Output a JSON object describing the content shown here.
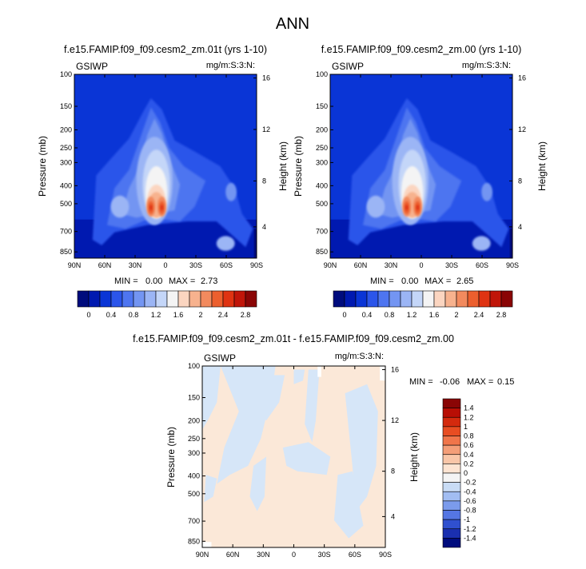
{
  "figure_title": "ANN",
  "chart_data": [
    {
      "type": "heatmap",
      "title": "f.e15.FAMIP.f09_f09.cesm2_zm.01t (yrs 1-10)",
      "variable": "GSIWP",
      "units": "mg/m:S:3:N:",
      "xlabel": "",
      "ylabel": "Pressure (mb)",
      "y2label": "Height (km)",
      "x_ticks": [
        "90N",
        "60N",
        "30N",
        "0",
        "30S",
        "60S",
        "90S"
      ],
      "y_ticks": [
        "100",
        "150",
        "200",
        "250",
        "300",
        "400",
        "500",
        "700",
        "850"
      ],
      "y2_ticks": [
        "16",
        "12",
        "8",
        "4"
      ],
      "min_label": "MIN =",
      "min_value": "0.00",
      "max_label": "MAX =",
      "max_value": "2.73",
      "colorbar_labels": [
        "0",
        "0.4",
        "0.8",
        "1.2",
        "1.6",
        "2",
        "2.4",
        "2.8"
      ]
    },
    {
      "type": "heatmap",
      "title": "f.e15.FAMIP.f09_f09.cesm2_zm.00 (yrs 1-10)",
      "variable": "GSIWP",
      "units": "mg/m:S:3:N:",
      "xlabel": "",
      "ylabel": "Pressure (mb)",
      "y2label": "Height (km)",
      "x_ticks": [
        "90N",
        "60N",
        "30N",
        "0",
        "30S",
        "60S",
        "90S"
      ],
      "y_ticks": [
        "100",
        "150",
        "200",
        "250",
        "300",
        "400",
        "500",
        "700",
        "850"
      ],
      "y2_ticks": [
        "16",
        "12",
        "8",
        "4"
      ],
      "min_label": "MIN =",
      "min_value": "0.00",
      "max_label": "MAX =",
      "max_value": "2.65",
      "colorbar_labels": [
        "0",
        "0.4",
        "0.8",
        "1.2",
        "1.6",
        "2",
        "2.4",
        "2.8"
      ]
    },
    {
      "type": "heatmap",
      "title": "f.e15.FAMIP.f09_f09.cesm2_zm.01t - f.e15.FAMIP.f09_f09.cesm2_zm.00",
      "variable": "GSIWP",
      "units": "mg/m:S:3:N:",
      "xlabel": "",
      "ylabel": "Pressure (mb)",
      "y2label": "Height (km)",
      "x_ticks": [
        "90N",
        "60N",
        "30N",
        "0",
        "30S",
        "60S",
        "90S"
      ],
      "y_ticks": [
        "100",
        "150",
        "200",
        "250",
        "300",
        "400",
        "500",
        "700",
        "850"
      ],
      "y2_ticks": [
        "16",
        "12",
        "8",
        "4"
      ],
      "min_label": "MIN =",
      "min_value": "-0.06",
      "max_label": "MAX =",
      "max_value": "0.15",
      "colorbar_labels": [
        "1.4",
        "1.2",
        "1",
        "0.8",
        "0.6",
        "0.4",
        "0.2",
        "0",
        "-0.2",
        "-0.4",
        "-0.6",
        "-0.8",
        "-1",
        "-1.2",
        "-1.4"
      ]
    }
  ],
  "colors": {
    "seq_scale": [
      "#000c7d",
      "#0019b0",
      "#0a35d6",
      "#2b55ea",
      "#4e75f0",
      "#7395f2",
      "#9bb5f5",
      "#c4d6f8",
      "#f4f4f4",
      "#fbd5c0",
      "#f7b28e",
      "#f28a5e",
      "#ec5f2e",
      "#df3312",
      "#c01509",
      "#8a0505"
    ],
    "diff_scale": [
      "#8a0505",
      "#b80e05",
      "#d42a0e",
      "#e84d22",
      "#f0754a",
      "#f49e78",
      "#f9c6a8",
      "#fde4d2",
      "#f4f4f4",
      "#c9dcf5",
      "#a2bdf2",
      "#7b9bec",
      "#5576e3",
      "#3050cf",
      "#1a2fb0",
      "#000c7d"
    ],
    "background_field": "#0a35d6",
    "diff_pos": "#fbe8d8",
    "diff_neg": "#d6e6f8",
    "diff_null": "#ffffff"
  }
}
